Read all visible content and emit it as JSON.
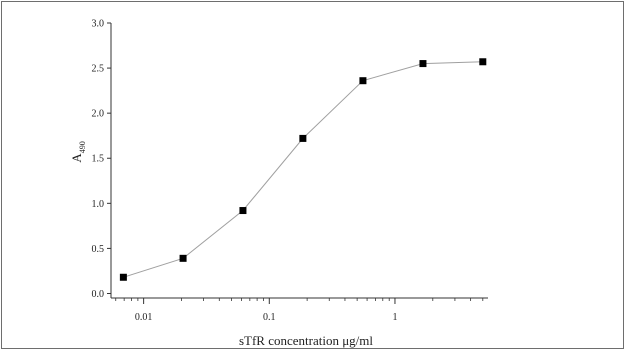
{
  "chart_data": {
    "type": "line",
    "xlabel": "sTfR concentration μg/ml",
    "ylabel": "A",
    "ylabel_subscript": "490",
    "x_scale": "log",
    "xlim": [
      0.0055,
      5.5
    ],
    "ylim": [
      -0.05,
      3.0
    ],
    "x_ticks": [
      {
        "value": 0.01,
        "label": "0.01"
      },
      {
        "value": 0.1,
        "label": "0.1"
      },
      {
        "value": 1,
        "label": "1"
      }
    ],
    "y_ticks": [
      {
        "value": 0.0,
        "label": "0.0"
      },
      {
        "value": 0.5,
        "label": "0.5"
      },
      {
        "value": 1.0,
        "label": "1.0"
      },
      {
        "value": 1.5,
        "label": "1.5"
      },
      {
        "value": 2.0,
        "label": "2.0"
      },
      {
        "value": 2.5,
        "label": "2.5"
      },
      {
        "value": 3.0,
        "label": "3.0"
      }
    ],
    "grid": false,
    "series": [
      {
        "marker": "square",
        "line_color": "#a0a0a0",
        "marker_color": "#000000",
        "points": [
          {
            "x": 0.0069,
            "y": 0.18
          },
          {
            "x": 0.0206,
            "y": 0.39
          },
          {
            "x": 0.0617,
            "y": 0.92
          },
          {
            "x": 0.185,
            "y": 1.72
          },
          {
            "x": 0.556,
            "y": 2.36
          },
          {
            "x": 1.67,
            "y": 2.55
          },
          {
            "x": 5.0,
            "y": 2.57
          }
        ]
      }
    ]
  }
}
